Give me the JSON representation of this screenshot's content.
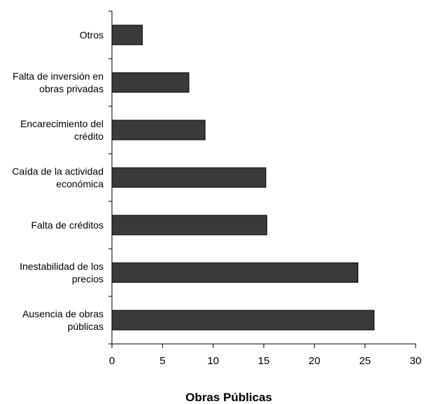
{
  "chart_data": {
    "type": "bar",
    "orientation": "horizontal",
    "categories": [
      [
        "Otros"
      ],
      [
        "Falta de inversión en",
        "obras privadas"
      ],
      [
        "Encarecimiento del",
        "crédito"
      ],
      [
        "Caída de la actividad",
        "económica"
      ],
      [
        "Falta de créditos"
      ],
      [
        "Inestabilidad de los",
        "precios"
      ],
      [
        "Ausencia de obras",
        "públicas"
      ]
    ],
    "values": [
      3.0,
      7.6,
      9.2,
      15.2,
      15.3,
      24.3,
      25.9
    ],
    "xlabel": "Obras Públicas",
    "xlim": [
      0,
      30
    ],
    "xticks": [
      0,
      5,
      10,
      15,
      20,
      25,
      30
    ],
    "grid": false,
    "legend": "none",
    "bar_color": "#3a3a3a"
  }
}
